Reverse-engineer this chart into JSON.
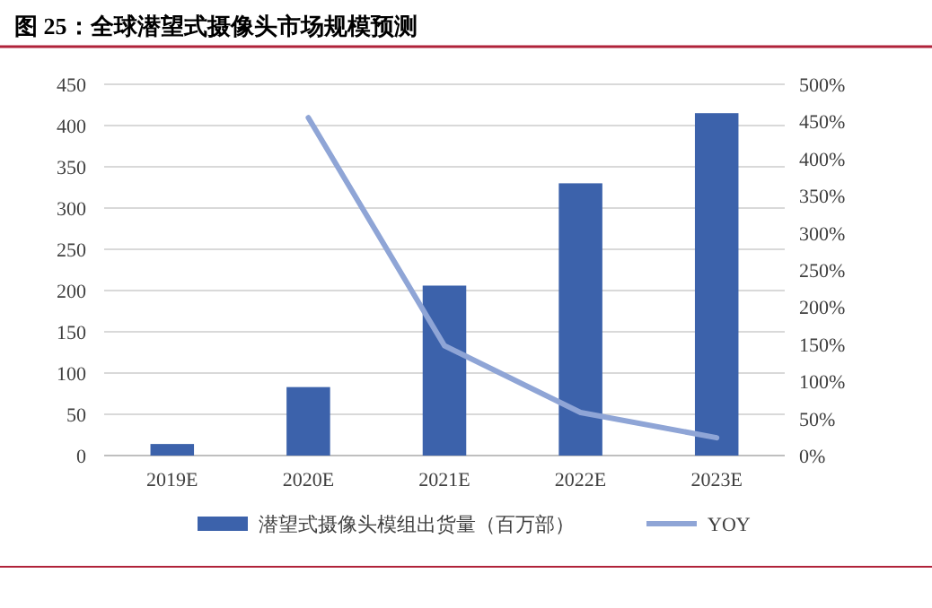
{
  "chart_data": {
    "type": "bar",
    "title": "图 25：全球潜望式摄像头市场规模预测",
    "categories": [
      "2019E",
      "2020E",
      "2021E",
      "2022E",
      "2023E"
    ],
    "series": [
      {
        "name": "潜望式摄像头模组出货量（百万部）",
        "color": "#3c62ab",
        "values": [
          14,
          83,
          206,
          330,
          415
        ]
      },
      {
        "name": "YOY",
        "type": "line",
        "axis": "y2",
        "color": "#8fa5d6",
        "values": [
          null,
          455,
          148,
          58,
          24
        ]
      }
    ],
    "ylim": [
      0,
      450
    ],
    "yticks": [
      0,
      50,
      100,
      150,
      200,
      250,
      300,
      350,
      400,
      450
    ],
    "y2lim": [
      0,
      500
    ],
    "y2ticks": [
      {
        "value": 0,
        "label": "0%"
      },
      {
        "value": 50,
        "label": "50%"
      },
      {
        "value": 100,
        "label": "100%"
      },
      {
        "value": 150,
        "label": "150%"
      },
      {
        "value": 200,
        "label": "200%"
      },
      {
        "value": 250,
        "label": "250%"
      },
      {
        "value": 300,
        "label": "300%"
      },
      {
        "value": 350,
        "label": "350%"
      },
      {
        "value": 400,
        "label": "400%"
      },
      {
        "value": 450,
        "label": "450%"
      },
      {
        "value": 500,
        "label": "500%"
      }
    ],
    "grid": "y",
    "legend": "bottom"
  }
}
